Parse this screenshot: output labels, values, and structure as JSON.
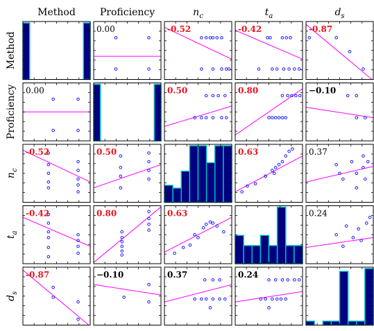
{
  "chart_data": {
    "type": "scatter",
    "variables": [
      {
        "name": "Method",
        "label_html": "Method"
      },
      {
        "name": "Proficiency",
        "label_html": "Proficiency"
      },
      {
        "name": "n_c",
        "label_main": "n",
        "label_sub": "c"
      },
      {
        "name": "t_a",
        "label_main": "t",
        "label_sub": "a"
      },
      {
        "name": "d_s",
        "label_main": "d",
        "label_sub": "s"
      }
    ],
    "correlations": [
      [
        "",
        "0.00",
        "-0.52",
        "-0.42",
        "-0.87"
      ],
      [
        "0.00",
        "",
        "0.50",
        "0.80",
        "−0.10"
      ],
      [
        "-0.52",
        "0.50",
        "",
        "0.63",
        "0.37"
      ],
      [
        "-0.42",
        "0.80",
        "0.63",
        "",
        "0.24"
      ],
      [
        "-0.87",
        "−0.10",
        "0.37",
        "0.24",
        ""
      ]
    ],
    "significant": [
      [
        false,
        false,
        true,
        true,
        true
      ],
      [
        false,
        false,
        true,
        true,
        false
      ],
      [
        true,
        true,
        false,
        true,
        false
      ],
      [
        true,
        true,
        true,
        false,
        false
      ],
      [
        true,
        false,
        false,
        false,
        false
      ]
    ],
    "histograms": [
      [
        1,
        0,
        0,
        0,
        0,
        0,
        0,
        0,
        0,
        1
      ],
      [
        1,
        0,
        0,
        0,
        0,
        0,
        0,
        0,
        0,
        1
      ],
      [
        0.3,
        0.25,
        0.55,
        1,
        1,
        0.7,
        1,
        1
      ],
      [
        0.5,
        0.32,
        0.32,
        0.5,
        0.32,
        1,
        0.32,
        0.32
      ],
      [
        0.07,
        0,
        0.07,
        0.07,
        0.95,
        0.07,
        0.07,
        1
      ]
    ],
    "series_note": ""
  },
  "colors": {
    "marker": "#1a1aff",
    "fit_line": "#ff00ff",
    "bar_fill": "#000080",
    "bar_edge": "#00bfbf",
    "significant_text": "#e8141e"
  }
}
